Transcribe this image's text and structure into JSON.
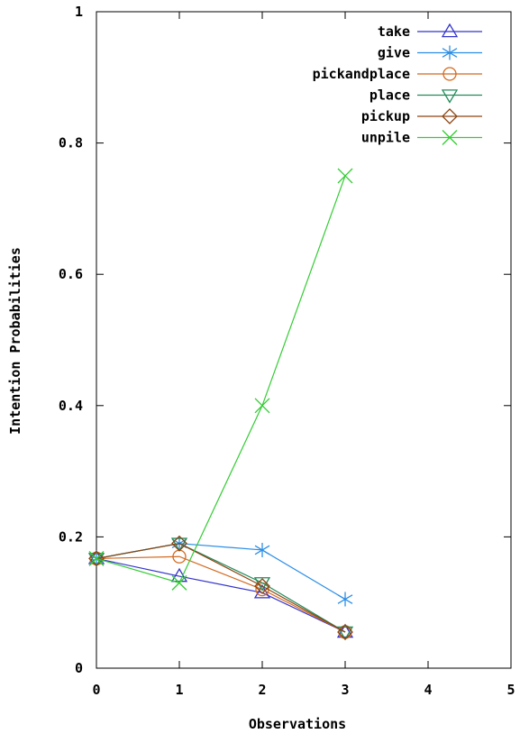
{
  "chart_data": {
    "type": "line",
    "title": "",
    "xlabel": "Observations",
    "ylabel": "Intention Probabilities",
    "xlim": [
      0,
      5
    ],
    "ylim": [
      0,
      1
    ],
    "x_ticks": [
      0,
      1,
      2,
      3,
      4,
      5
    ],
    "x_tick_labels": [
      "0",
      "1",
      "2",
      "3",
      "4",
      "5"
    ],
    "y_ticks": [
      0,
      0.2,
      0.4,
      0.6,
      0.8,
      1
    ],
    "y_tick_labels": [
      "0",
      "0.2",
      "0.4",
      "0.6",
      "0.8",
      "1"
    ],
    "grid": false,
    "legend_position": "top-right",
    "x": [
      0,
      1,
      2,
      3
    ],
    "series": [
      {
        "name": "take",
        "color": "#3333cc",
        "marker": "triangle-up",
        "values": [
          0.167,
          0.14,
          0.115,
          0.055
        ]
      },
      {
        "name": "give",
        "color": "#2b8ee6",
        "marker": "star",
        "values": [
          0.167,
          0.19,
          0.18,
          0.105
        ]
      },
      {
        "name": "pickandplace",
        "color": "#d2691e",
        "marker": "circle",
        "values": [
          0.167,
          0.17,
          0.12,
          0.055
        ]
      },
      {
        "name": "place",
        "color": "#228b5a",
        "marker": "triangle-down",
        "values": [
          0.167,
          0.19,
          0.13,
          0.055
        ]
      },
      {
        "name": "pickup",
        "color": "#8b4513",
        "marker": "diamond",
        "values": [
          0.167,
          0.19,
          0.125,
          0.055
        ]
      },
      {
        "name": "unpile",
        "color": "#33cc33",
        "marker": "x",
        "values": [
          0.167,
          0.13,
          0.4,
          0.75
        ]
      }
    ]
  }
}
